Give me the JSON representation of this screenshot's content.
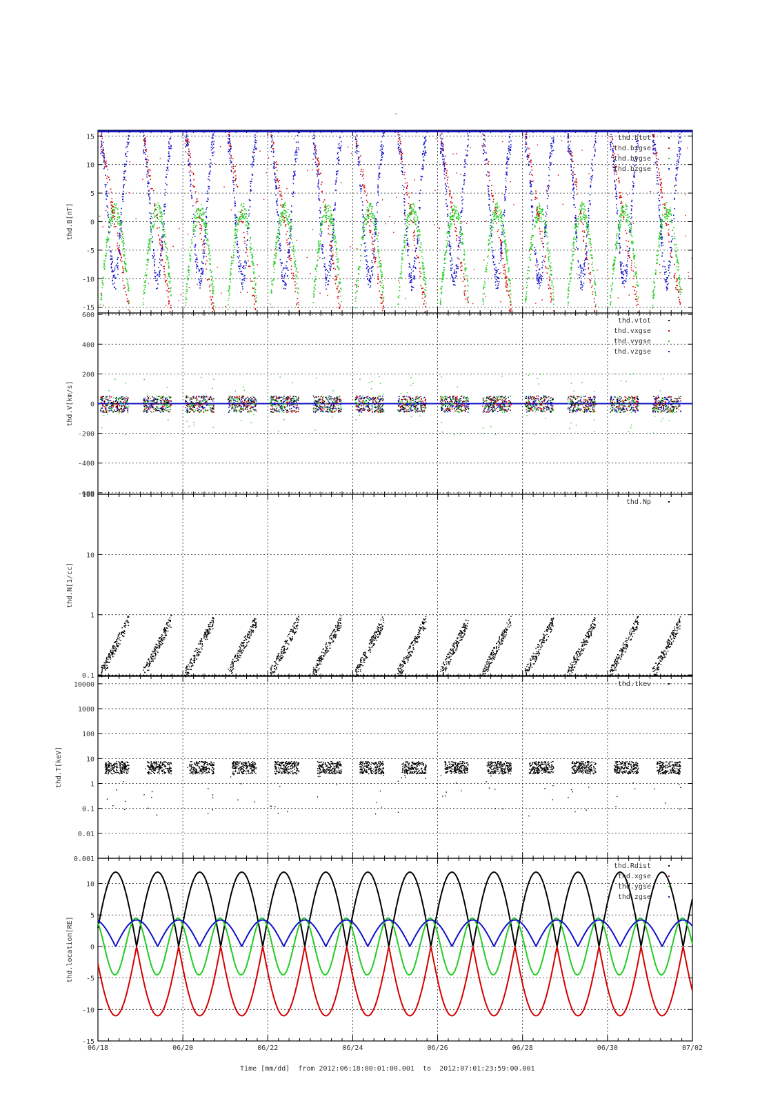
{
  "figure": {
    "top_mark": "-",
    "footer": {
      "label": "Time [mm/dd]",
      "from_label": "from",
      "start": "2012:06:18:00:01:00.001",
      "to_label": "to",
      "end": "2012:07:01:23:59:00.001"
    }
  },
  "colors": {
    "black": "#000000",
    "red": "#d40000",
    "green": "#22cc22",
    "blue": "#1010c8",
    "grid": "#222222"
  },
  "chart_data": [
    {
      "type": "scatter",
      "ylabel": "thd.B[nT]",
      "ylim": [
        -16,
        16
      ],
      "scale": "linear",
      "yticks": [
        15,
        10,
        5,
        0,
        -5,
        -10,
        -15
      ],
      "yticklabels": [
        "15",
        "10",
        "5",
        "0",
        "-5",
        "-10",
        "-15"
      ],
      "grid": true,
      "legend_position": "top-right",
      "xlim": [
        "2012-06-18",
        "2012-07-02"
      ],
      "series": [
        {
          "name": "thd.btot",
          "color": "black",
          "kind": "btot"
        },
        {
          "name": "thd.bxgse",
          "color": "red",
          "kind": "bx"
        },
        {
          "name": "thd.bygse",
          "color": "green",
          "kind": "by"
        },
        {
          "name": "thd.bzgse",
          "color": "blue",
          "kind": "bz"
        }
      ]
    },
    {
      "type": "scatter",
      "ylabel": "thd.V[km/s]",
      "ylim": [
        -610,
        610
      ],
      "scale": "linear",
      "yticks": [
        600,
        400,
        200,
        0,
        -200,
        -400,
        -600
      ],
      "yticklabels": [
        "600",
        "400",
        "200",
        "0",
        "-200",
        "-400",
        "-600"
      ],
      "grid": true,
      "legend_position": "top-right",
      "xlim": [
        "2012-06-18",
        "2012-07-02"
      ],
      "series": [
        {
          "name": "thd.vtot",
          "color": "black",
          "kind": "vtot"
        },
        {
          "name": "thd.vxgse",
          "color": "red",
          "kind": "vx"
        },
        {
          "name": "thd.vygse",
          "color": "green",
          "kind": "vy"
        },
        {
          "name": "thd.vzgse",
          "color": "blue",
          "kind": "vz"
        }
      ]
    },
    {
      "type": "scatter",
      "ylabel": "thd.N[1/cc]",
      "ylim": [
        0.095,
        100
      ],
      "scale": "log",
      "yticks": [
        100,
        10,
        1,
        0.1
      ],
      "yticklabels": [
        "100",
        "10",
        "1",
        "0.1"
      ],
      "grid": true,
      "legend_position": "top-right",
      "xlim": [
        "2012-06-18",
        "2012-07-02"
      ],
      "series": [
        {
          "name": "thd.Np",
          "color": "black",
          "kind": "np"
        }
      ]
    },
    {
      "type": "scatter",
      "ylabel": "thd.T[keV]",
      "ylim": [
        0.001,
        20000
      ],
      "scale": "log",
      "yticks": [
        10000,
        1000,
        100,
        10,
        1,
        0.1,
        0.01,
        0.001
      ],
      "yticklabels": [
        "10000",
        "1000",
        "100",
        "10",
        "1",
        "0.1",
        "0.01",
        "0.001"
      ],
      "grid": true,
      "legend_position": "top-right",
      "xlim": [
        "2012-06-18",
        "2012-07-02"
      ],
      "series": [
        {
          "name": "thd.tkev",
          "color": "black",
          "kind": "tkev"
        }
      ]
    },
    {
      "type": "line",
      "ylabel": "thd.location[RE]",
      "ylim": [
        -15,
        14
      ],
      "scale": "linear",
      "yticks": [
        10,
        5,
        0,
        -5,
        -10,
        -15
      ],
      "yticklabels": [
        "10",
        "5",
        "0",
        "-5",
        "-10",
        "-15"
      ],
      "grid": true,
      "legend_position": "top-right",
      "xlim": [
        "2012-06-18",
        "2012-07-02"
      ],
      "xticklabels": [
        "06/18",
        "06/20",
        "06/22",
        "06/24",
        "06/26",
        "06/28",
        "06/30",
        "07/02"
      ],
      "series": [
        {
          "name": "thd.Rdist",
          "color": "black",
          "kind": "r",
          "amplitude": 11.8,
          "period_days": 0.99
        },
        {
          "name": "thd.xgse",
          "color": "red",
          "kind": "x",
          "amplitude": 11.0,
          "period_days": 0.99
        },
        {
          "name": "thd.ygse",
          "color": "green",
          "kind": "y",
          "amplitude": 4.5,
          "period_days": 0.99
        },
        {
          "name": "thd.zgse",
          "color": "blue",
          "kind": "z",
          "amplitude": 4.2,
          "period_days": 0.99
        }
      ]
    }
  ]
}
